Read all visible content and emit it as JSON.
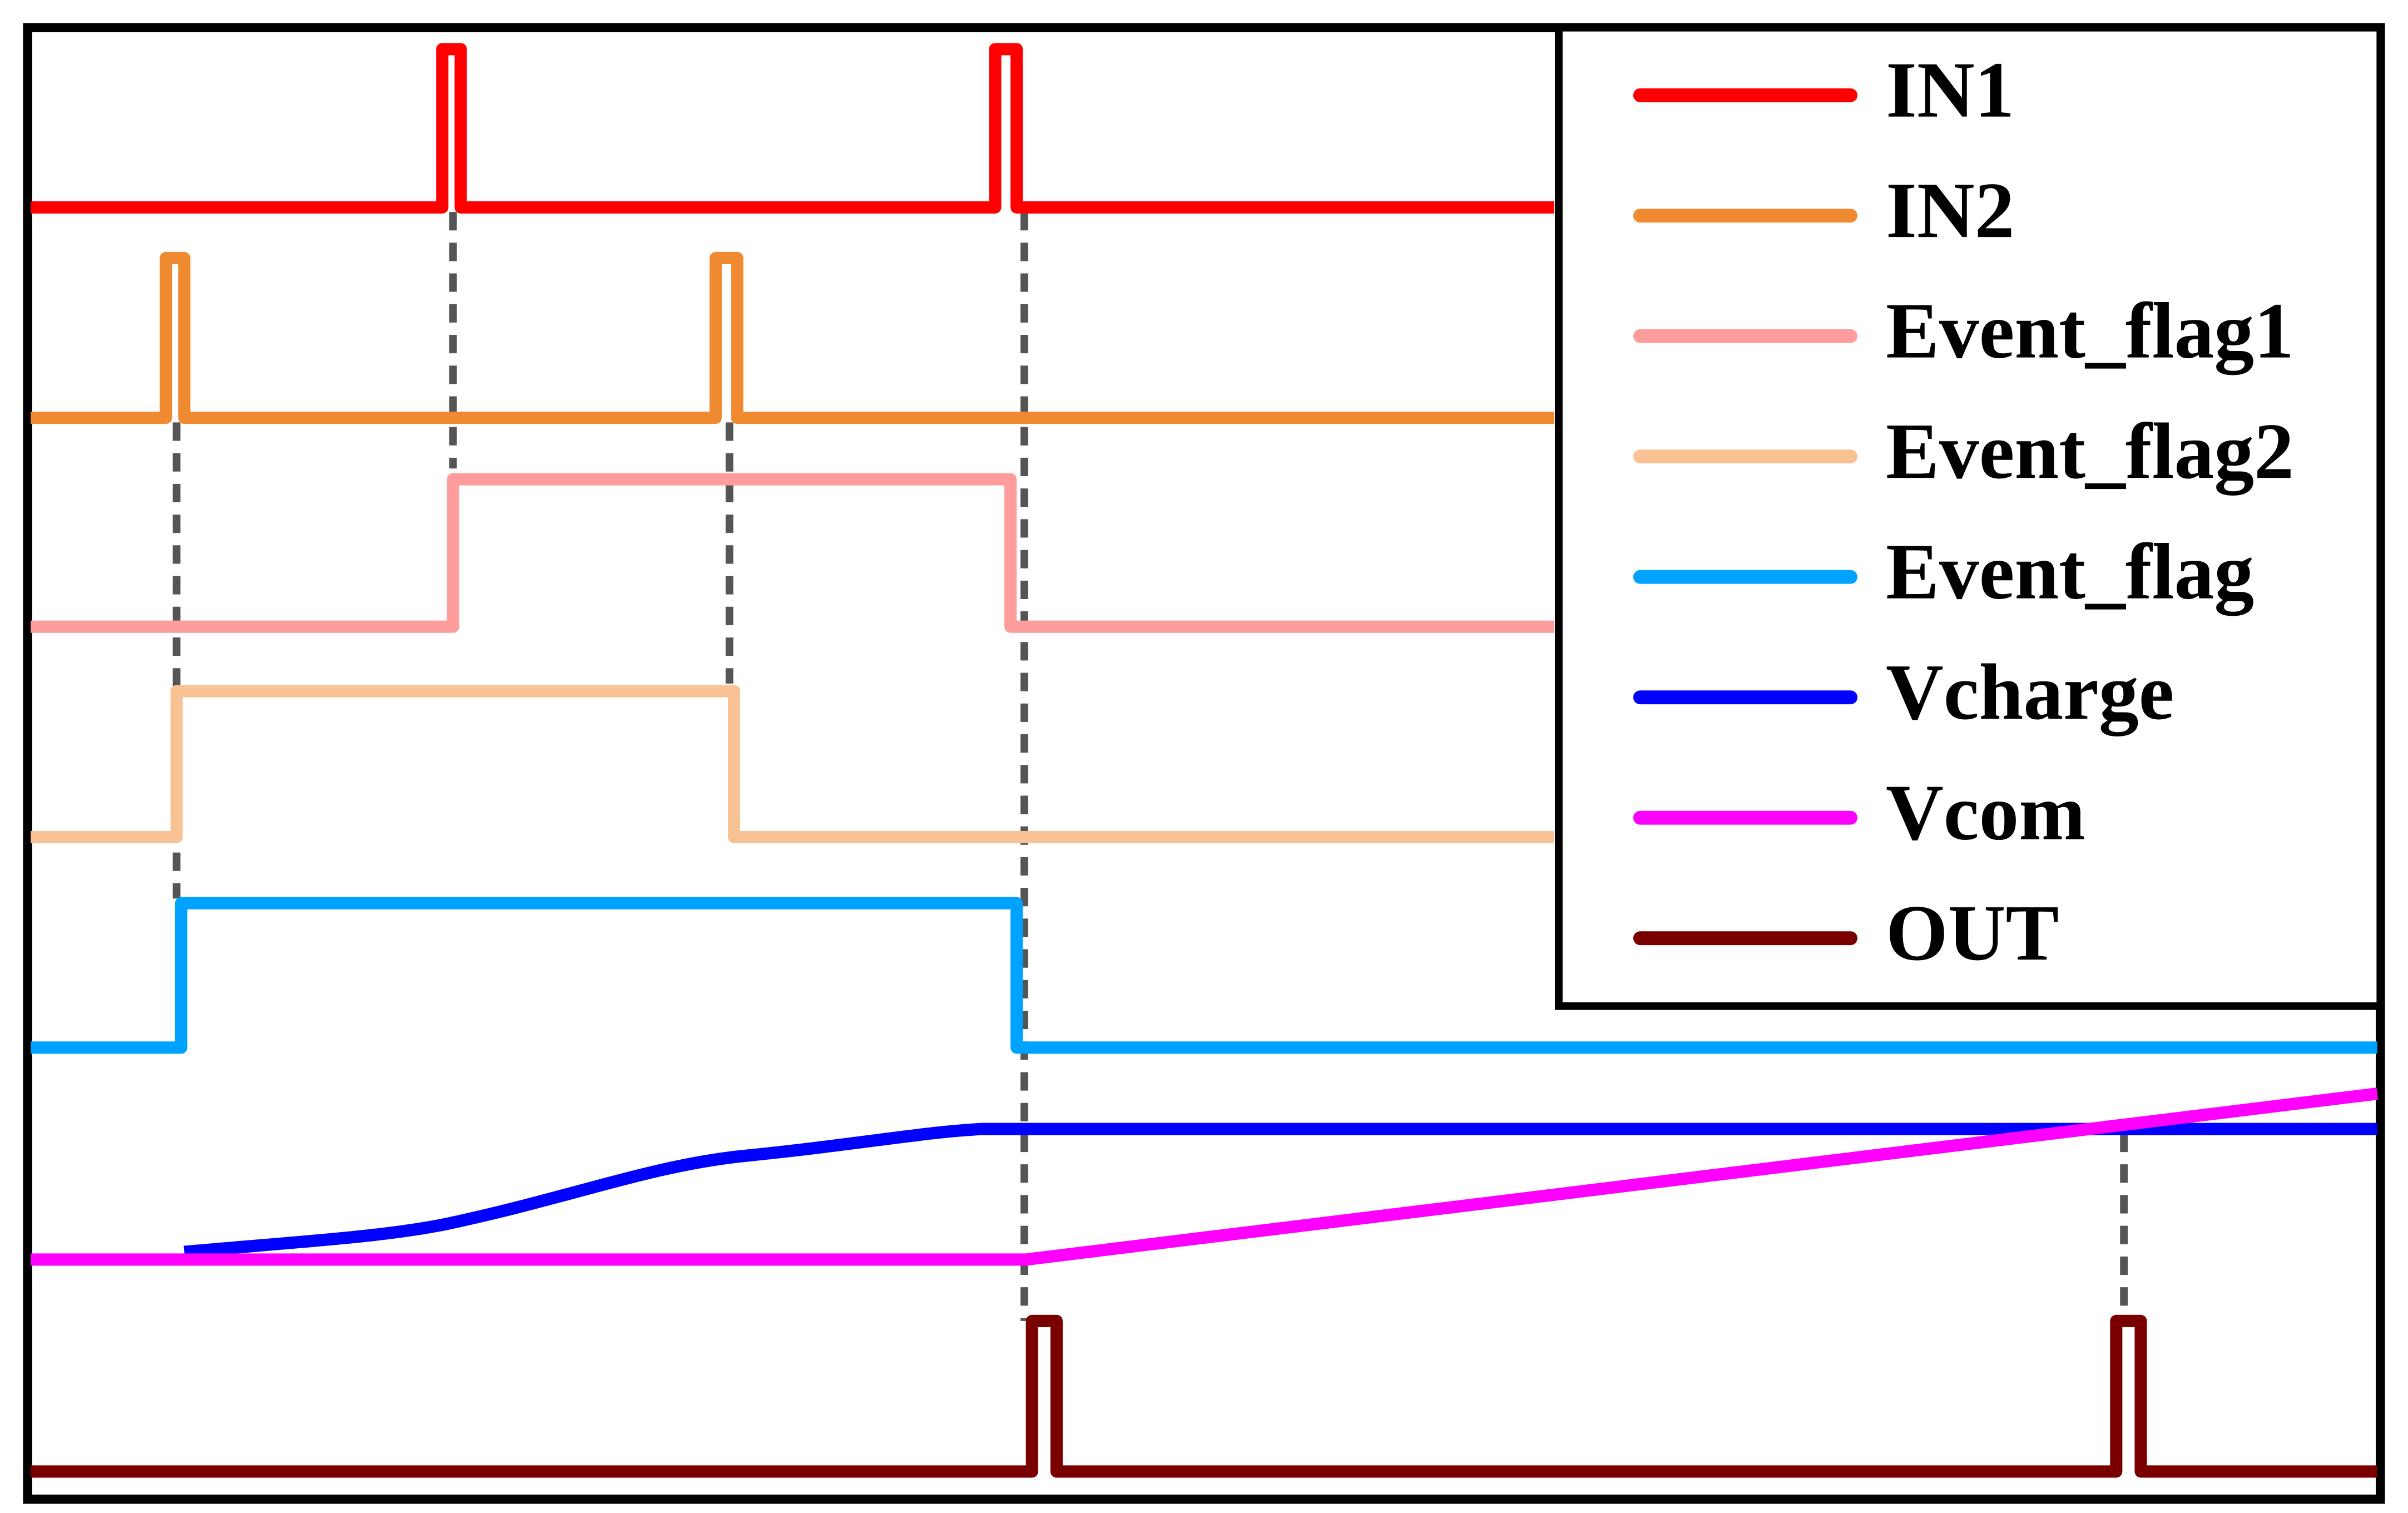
{
  "legend": {
    "items": [
      {
        "label": "IN1",
        "color": "#ff0000"
      },
      {
        "label": "IN2",
        "color": "#f08a30"
      },
      {
        "label": "Event_flag1",
        "color": "#ff9c9c"
      },
      {
        "label": "Event_flag2",
        "color": "#f8c294"
      },
      {
        "label": "Event_flag",
        "color": "#00a2ff"
      },
      {
        "label": "Vcharge",
        "color": "#0000ff"
      },
      {
        "label": "Vcom",
        "color": "#ff00ff"
      },
      {
        "label": "OUT",
        "color": "#7a0000"
      }
    ]
  }
}
